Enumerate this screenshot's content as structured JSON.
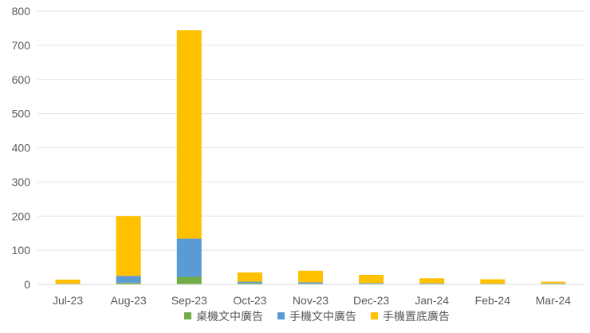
{
  "chart_data": {
    "type": "bar",
    "stacked": true,
    "title": "",
    "xlabel": "",
    "ylabel": "",
    "categories": [
      "Jul-23",
      "Aug-23",
      "Sep-23",
      "Oct-23",
      "Nov-23",
      "Dec-23",
      "Jan-24",
      "Feb-24",
      "Mar-24"
    ],
    "ylim": [
      0,
      800
    ],
    "yticks": [
      0,
      100,
      200,
      300,
      400,
      500,
      600,
      700,
      800
    ],
    "grid": true,
    "legend_position": "bottom",
    "series": [
      {
        "name": "桌機文中廣告",
        "color": "#70ad47",
        "values": [
          1,
          5,
          22,
          4,
          2,
          2,
          1,
          1,
          2
        ]
      },
      {
        "name": "手機文中廣告",
        "color": "#5b9bd5",
        "values": [
          1,
          20,
          112,
          4,
          4,
          2,
          2,
          1,
          1
        ]
      },
      {
        "name": "手機置底廣告",
        "color": "#ffc000",
        "values": [
          12,
          175,
          610,
          27,
          34,
          24,
          15,
          13,
          5
        ]
      }
    ]
  }
}
